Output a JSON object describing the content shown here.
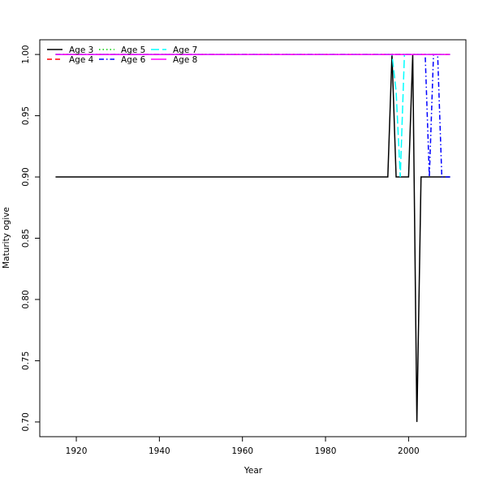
{
  "chart_data": {
    "type": "line",
    "title": "",
    "xlabel": "Year",
    "ylabel": "Maturity ogive",
    "xlim": [
      1911.2,
      2013.8
    ],
    "ylim": [
      0.688,
      1.012
    ],
    "xticks": [
      1920,
      1940,
      1960,
      1980,
      2000
    ],
    "yticks": [
      0.7,
      0.75,
      0.8,
      0.85,
      0.9,
      0.95,
      1.0
    ],
    "ytick_labels": [
      "0.70",
      "0.75",
      "0.80",
      "0.85",
      "0.90",
      "0.95",
      "1.00"
    ],
    "grid": false,
    "legend_position": "top-left",
    "series": [
      {
        "name": "Age 3",
        "color": "#000000",
        "dash": "",
        "points": [
          [
            1915,
            0.9
          ],
          [
            1995,
            0.9
          ],
          [
            1996,
            1.0
          ],
          [
            1997,
            0.9
          ],
          [
            1999,
            0.9
          ],
          [
            2000,
            0.9
          ],
          [
            2001,
            1.0
          ],
          [
            2002,
            0.7
          ],
          [
            2003,
            0.9
          ],
          [
            2010,
            0.9
          ]
        ]
      },
      {
        "name": "Age 4",
        "color": "#ff0000",
        "dash": "6,4",
        "points": [
          [
            1915,
            1.0
          ],
          [
            2010,
            1.0
          ]
        ]
      },
      {
        "name": "Age 5",
        "color": "#00cd00",
        "dash": "1.5,3",
        "points": [
          [
            1915,
            1.0
          ],
          [
            2010,
            1.0
          ]
        ]
      },
      {
        "name": "Age 6",
        "color": "#0000ff",
        "dash": "6,3,1.5,3",
        "points": [
          [
            1915,
            1.0
          ],
          [
            2004,
            1.0
          ],
          [
            2005,
            0.9
          ],
          [
            2006,
            1.0
          ],
          [
            2007,
            1.0
          ],
          [
            2008,
            0.9
          ],
          [
            2010,
            0.9
          ]
        ]
      },
      {
        "name": "Age 7",
        "color": "#00ffff",
        "dash": "10,4",
        "points": [
          [
            1915,
            1.0
          ],
          [
            1996,
            1.0
          ],
          [
            1997,
            0.97
          ],
          [
            1998,
            0.9
          ],
          [
            1999,
            1.0
          ],
          [
            2010,
            1.0
          ]
        ]
      },
      {
        "name": "Age 8",
        "color": "#ff00ff",
        "dash": "",
        "points": [
          [
            1915,
            1.0
          ],
          [
            2010,
            1.0
          ]
        ]
      }
    ]
  }
}
